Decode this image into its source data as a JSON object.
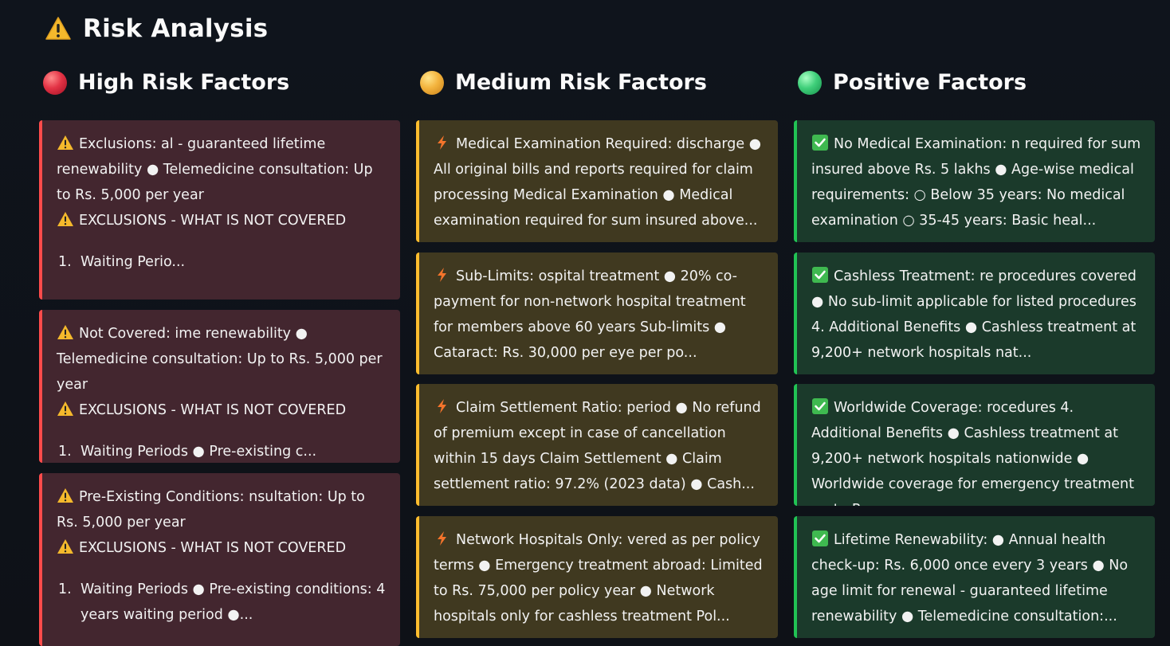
{
  "page": {
    "title": "Risk Analysis"
  },
  "columns": {
    "high": {
      "heading": "High Risk Factors"
    },
    "medium": {
      "heading": "Medium Risk Factors"
    },
    "positive": {
      "heading": "Positive Factors"
    }
  },
  "high_cards": [
    {
      "text": "Exclusions: al - guaranteed lifetime renewability ● Telemedicine consultation: Up to Rs. 5,000 per year",
      "subheading": "EXCLUSIONS - WHAT IS NOT COVERED",
      "list_number": "1.",
      "list_text": "Waiting Perio..."
    },
    {
      "text": "Not Covered: ime renewability ● Telemedicine consultation: Up to Rs. 5,000 per year",
      "subheading": "EXCLUSIONS - WHAT IS NOT COVERED",
      "list_number": "1.",
      "list_text": "Waiting Periods ● Pre-existing c..."
    },
    {
      "text": "Pre-Existing Conditions: nsultation: Up to Rs. 5,000 per year",
      "subheading": "EXCLUSIONS - WHAT IS NOT COVERED",
      "list_number": "1.",
      "list_text": "Waiting Periods ● Pre-existing conditions: 4 years waiting period ●..."
    }
  ],
  "medium_cards": [
    {
      "text": "Medical Examination Required: discharge ● All original bills and reports required for claim processing Medical Examination ● Medical examination required for sum insured above..."
    },
    {
      "text": "Sub-Limits: ospital treatment ● 20% co-payment for non-network hospital treatment for members above 60 years Sub-limits ● Cataract: Rs. 30,000 per eye per po..."
    },
    {
      "text": "Claim Settlement Ratio: period ● No refund of premium except in case of cancellation within 15 days Claim Settlement ● Claim settlement ratio: 97.2% (2023 data) ● Cash..."
    },
    {
      "text": "Network Hospitals Only: vered as per policy terms ● Emergency treatment abroad: Limited to Rs. 75,000 per policy year ● Network hospitals only for cashless treatment Pol..."
    }
  ],
  "positive_cards": [
    {
      "text": "No Medical Examination: n required for sum insured above Rs. 5 lakhs ● Age-wise medical requirements: ○ Below 35 years: No medical examination ○ 35-45 years: Basic heal..."
    },
    {
      "text": "Cashless Treatment: re procedures covered ● No sub-limit applicable for listed procedures 4. Additional Benefits ● Cashless treatment at 9,200+ network hospitals nat..."
    },
    {
      "text": "Worldwide Coverage: rocedures 4. Additional Benefits ● Cashless treatment at 9,200+ network hospitals nationwide ● Worldwide coverage for emergency treatment up to R..."
    },
    {
      "text": "Lifetime Renewability: ● Annual health check-up: Rs. 6,000 once every 3 years ● No age limit for renewal - guaranteed lifetime renewability ● Telemedicine consultation:..."
    }
  ],
  "colors": {
    "background": "#0e1117",
    "high_accent": "#ff4b4b",
    "high_card_bg": "#43262f",
    "medium_accent": "#ffbd2e",
    "medium_card_bg": "#403920",
    "positive_accent": "#21c354",
    "positive_card_bg": "#1b3a2b"
  },
  "icons": {
    "title": "warning-icon",
    "high": "warning-icon",
    "medium": "lightning-icon",
    "positive": "check-mark-icon"
  }
}
